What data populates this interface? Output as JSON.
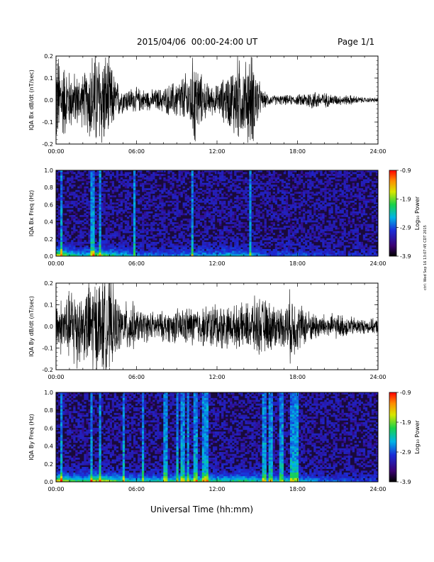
{
  "header": {
    "title": "2015/04/06  00:00-24:00 UT",
    "page": "Page 1/1"
  },
  "x_title": "Universal Time (hh:mm)",
  "side_stamp": "ctrl: Wed Sep 16 13:07:45 CDT 2015",
  "chart_data": [
    {
      "type": "line",
      "ylabel": "IQA Bx dB/dt (nT/sec)",
      "x_ticks": [
        "00:00",
        "06:00",
        "12:00",
        "18:00",
        "24:00"
      ],
      "xlim_hours": [
        0,
        24
      ],
      "y_ticks": [
        "0.2",
        "0.1",
        "0.0",
        "-0.1",
        "-0.2"
      ],
      "ylim": [
        -0.2,
        0.2
      ],
      "amplitude_profile": {
        "hours": [
          0,
          0.5,
          1,
          1.8,
          2.3,
          2.6,
          3.2,
          3.6,
          4,
          4.5,
          5,
          6,
          7,
          8,
          9,
          10,
          10.3,
          10.7,
          11,
          11.5,
          12,
          13,
          13.5,
          14,
          14.5,
          15,
          15.3,
          16,
          17,
          18,
          19,
          20,
          21,
          22,
          23,
          24
        ],
        "amp": [
          0.2,
          0.16,
          0.12,
          0.1,
          0.12,
          0.2,
          0.2,
          0.2,
          0.16,
          0.08,
          0.05,
          0.05,
          0.04,
          0.05,
          0.08,
          0.12,
          0.2,
          0.12,
          0.08,
          0.06,
          0.06,
          0.12,
          0.18,
          0.14,
          0.2,
          0.12,
          0.04,
          0.02,
          0.02,
          0.02,
          0.04,
          0.03,
          0.02,
          0.02,
          0.01,
          0.01
        ]
      }
    },
    {
      "type": "heatmap",
      "ylabel": "IQA Bx Freq (Hz)",
      "x_ticks": [
        "00:00",
        "06:00",
        "12:00",
        "18:00",
        "24:00"
      ],
      "xlim_hours": [
        0,
        24
      ],
      "y_ticks": [
        "1.0",
        "0.8",
        "0.6",
        "0.4",
        "0.2",
        "0.0"
      ],
      "ylim": [
        0,
        1
      ],
      "colorbar_label": "Log₁₀ Power",
      "colorbar_ticks": [
        "-0.9",
        "-1.9",
        "-2.9",
        "-3.9"
      ],
      "zlim": [
        -3.9,
        -0.9
      ],
      "bursts_hours": [
        0.4,
        2.7,
        3.25,
        5.8,
        10.2,
        14.5
      ],
      "base_activity": {
        "hours": [
          0,
          1,
          2,
          3,
          4,
          5,
          6,
          8,
          10,
          12,
          13,
          14,
          15,
          16,
          17,
          18,
          20,
          22,
          24
        ],
        "level": [
          0.8,
          0.5,
          0.35,
          0.6,
          0.5,
          0.35,
          0.25,
          0.2,
          0.3,
          0.3,
          0.35,
          0.35,
          0.25,
          0.15,
          0.2,
          0.2,
          0.12,
          0.1,
          0.1
        ]
      }
    },
    {
      "type": "line",
      "ylabel": "IQA By dB/dt (nT/sec)",
      "x_ticks": [
        "00:00",
        "06:00",
        "12:00",
        "18:00",
        "24:00"
      ],
      "xlim_hours": [
        0,
        24
      ],
      "y_ticks": [
        "0.2",
        "0.1",
        "0.0",
        "-0.1",
        "-0.2"
      ],
      "ylim": [
        -0.2,
        0.2
      ],
      "amplitude_profile": {
        "hours": [
          0,
          0.5,
          1,
          1.5,
          2,
          2.5,
          3,
          3.5,
          4,
          4.5,
          5,
          5.5,
          6,
          7,
          8,
          9,
          10,
          11,
          12,
          13,
          14,
          15,
          16,
          17,
          17.5,
          18,
          19,
          20,
          21,
          22,
          23,
          24
        ],
        "amp": [
          0.1,
          0.12,
          0.14,
          0.2,
          0.12,
          0.2,
          0.2,
          0.2,
          0.2,
          0.12,
          0.08,
          0.12,
          0.07,
          0.06,
          0.06,
          0.07,
          0.08,
          0.08,
          0.1,
          0.08,
          0.09,
          0.12,
          0.1,
          0.08,
          0.15,
          0.1,
          0.06,
          0.05,
          0.05,
          0.04,
          0.03,
          0.03
        ]
      }
    },
    {
      "type": "heatmap",
      "ylabel": "IQA By Freq (Hz)",
      "x_ticks": [
        "00:00",
        "06:00",
        "12:00",
        "18:00",
        "24:00"
      ],
      "xlim_hours": [
        0,
        24
      ],
      "y_ticks": [
        "1.0",
        "0.8",
        "0.6",
        "0.4",
        "0.2",
        "0.0"
      ],
      "ylim": [
        0,
        1
      ],
      "colorbar_label": "Log₁₀ Power",
      "colorbar_ticks": [
        "-0.9",
        "-1.9",
        "-2.9",
        "-3.9"
      ],
      "zlim": [
        -3.9,
        -0.9
      ],
      "bursts_hours": [
        0.4,
        2.65,
        3.3,
        5.0,
        6.5,
        8.2,
        9.0,
        9.4,
        9.8,
        10.4,
        11.0,
        11.3,
        15.5,
        16.0,
        16.8,
        17.6,
        17.9
      ],
      "base_activity": {
        "hours": [
          0,
          1,
          2,
          3,
          4,
          5,
          6,
          8,
          10,
          12,
          13,
          14,
          15,
          16,
          17,
          18,
          20,
          22,
          24
        ],
        "level": [
          0.8,
          0.55,
          0.45,
          0.7,
          0.6,
          0.45,
          0.4,
          0.4,
          0.5,
          0.45,
          0.45,
          0.5,
          0.4,
          0.35,
          0.4,
          0.35,
          0.2,
          0.15,
          0.12
        ]
      }
    }
  ]
}
